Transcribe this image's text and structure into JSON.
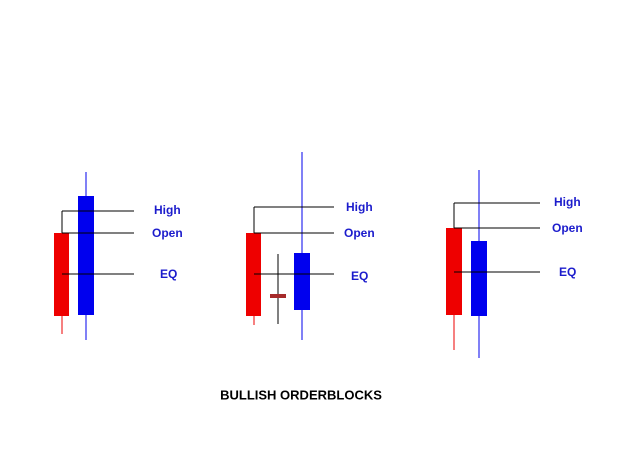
{
  "groups": [
    {
      "labels": {
        "high": "High",
        "open": "Open",
        "eq": "EQ"
      }
    },
    {
      "labels": {
        "high": "High",
        "open": "Open",
        "eq": "EQ"
      }
    },
    {
      "labels": {
        "high": "High",
        "open": "Open",
        "eq": "EQ"
      }
    }
  ],
  "caption": "BULLISH ORDERBLOCKS"
}
